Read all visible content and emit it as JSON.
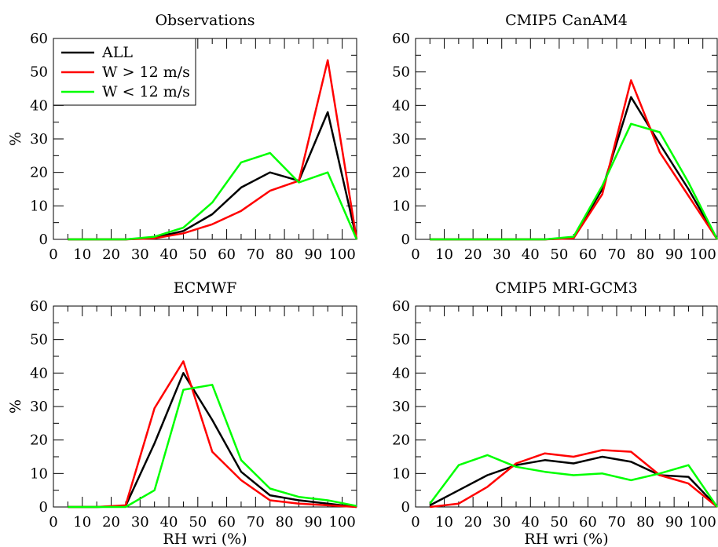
{
  "chart_data": [
    {
      "type": "line",
      "title": "Observations",
      "xlabel": "",
      "ylabel": "%",
      "xlim": [
        0,
        105
      ],
      "ylim": [
        0,
        60
      ],
      "xticks": [
        "0",
        "10",
        "20",
        "30",
        "40",
        "50",
        "60",
        "70",
        "80",
        "90",
        "100"
      ],
      "yticks": [
        "0",
        "10",
        "20",
        "30",
        "40",
        "50",
        "60"
      ],
      "x": [
        5,
        15,
        25,
        35,
        45,
        55,
        65,
        75,
        85,
        95,
        105
      ],
      "legend": "top-left",
      "series": [
        {
          "name": "ALL",
          "color": "#000000",
          "values": [
            0,
            0,
            0,
            0.5,
            2.5,
            7.5,
            15.5,
            20,
            17.5,
            38,
            0
          ]
        },
        {
          "name": "W > 12 m/s",
          "color": "#ff0000",
          "values": [
            0,
            0,
            0,
            0.3,
            1.8,
            4.5,
            8.5,
            14.5,
            17.5,
            53.5,
            0
          ]
        },
        {
          "name": "W < 12 m/s",
          "color": "#00ff00",
          "values": [
            0,
            0,
            0,
            0.8,
            3.5,
            11,
            23,
            25.8,
            17,
            20,
            0
          ]
        }
      ]
    },
    {
      "type": "line",
      "title": "CMIP5 CanAM4",
      "xlabel": "",
      "ylabel": "",
      "xlim": [
        0,
        105
      ],
      "ylim": [
        0,
        60
      ],
      "xticks": [
        "0",
        "10",
        "20",
        "30",
        "40",
        "50",
        "60",
        "70",
        "80",
        "90",
        "100"
      ],
      "yticks": [
        "0",
        "10",
        "20",
        "30",
        "40",
        "50",
        "60"
      ],
      "x": [
        5,
        15,
        25,
        35,
        45,
        55,
        65,
        75,
        85,
        95,
        105
      ],
      "series": [
        {
          "color": "#000000",
          "values": [
            0,
            0,
            0,
            0,
            0,
            0.5,
            15,
            42.5,
            28.5,
            15,
            0
          ]
        },
        {
          "color": "#ff0000",
          "values": [
            0,
            0,
            0,
            0,
            0,
            0.3,
            13.5,
            47.5,
            26,
            13,
            0
          ]
        },
        {
          "color": "#00ff00",
          "values": [
            0,
            0,
            0,
            0,
            0,
            0.8,
            16,
            34.5,
            32,
            17,
            0
          ]
        }
      ]
    },
    {
      "type": "line",
      "title": "ECMWF",
      "xlabel": "RH wri (%)",
      "ylabel": "%",
      "xlim": [
        0,
        105
      ],
      "ylim": [
        0,
        60
      ],
      "xticks": [
        "0",
        "10",
        "20",
        "30",
        "40",
        "50",
        "60",
        "70",
        "80",
        "90",
        "100"
      ],
      "yticks": [
        "0",
        "10",
        "20",
        "30",
        "40",
        "50",
        "60"
      ],
      "x": [
        5,
        15,
        25,
        35,
        45,
        55,
        65,
        75,
        85,
        95,
        105
      ],
      "series": [
        {
          "color": "#000000",
          "values": [
            0,
            0,
            0.3,
            19,
            40,
            26,
            10.5,
            3.5,
            2,
            1,
            0
          ]
        },
        {
          "color": "#ff0000",
          "values": [
            0,
            0,
            0.5,
            29.5,
            43.5,
            16.5,
            8,
            2,
            1,
            0.5,
            0
          ]
        },
        {
          "color": "#00ff00",
          "values": [
            0,
            0,
            0,
            5,
            35,
            36.5,
            14,
            5.5,
            3,
            2,
            0.3
          ]
        }
      ]
    },
    {
      "type": "line",
      "title": "CMIP5 MRI-GCM3",
      "xlabel": "RH wri (%)",
      "ylabel": "",
      "xlim": [
        0,
        105
      ],
      "ylim": [
        0,
        60
      ],
      "xticks": [
        "0",
        "10",
        "20",
        "30",
        "40",
        "50",
        "60",
        "70",
        "80",
        "90",
        "100"
      ],
      "yticks": [
        "0",
        "10",
        "20",
        "30",
        "40",
        "50",
        "60"
      ],
      "x": [
        5,
        15,
        25,
        35,
        45,
        55,
        65,
        75,
        85,
        95,
        105
      ],
      "series": [
        {
          "color": "#000000",
          "values": [
            0.5,
            5,
            9.5,
            12.5,
            14,
            13,
            15,
            13.5,
            9.5,
            9,
            0
          ]
        },
        {
          "color": "#ff0000",
          "values": [
            0,
            1,
            6,
            13,
            16,
            15,
            17,
            16.5,
            9.5,
            7,
            0
          ]
        },
        {
          "color": "#00ff00",
          "values": [
            1,
            12.5,
            15.5,
            12,
            10.5,
            9.5,
            10,
            8,
            10,
            12.5,
            0
          ]
        }
      ]
    }
  ]
}
